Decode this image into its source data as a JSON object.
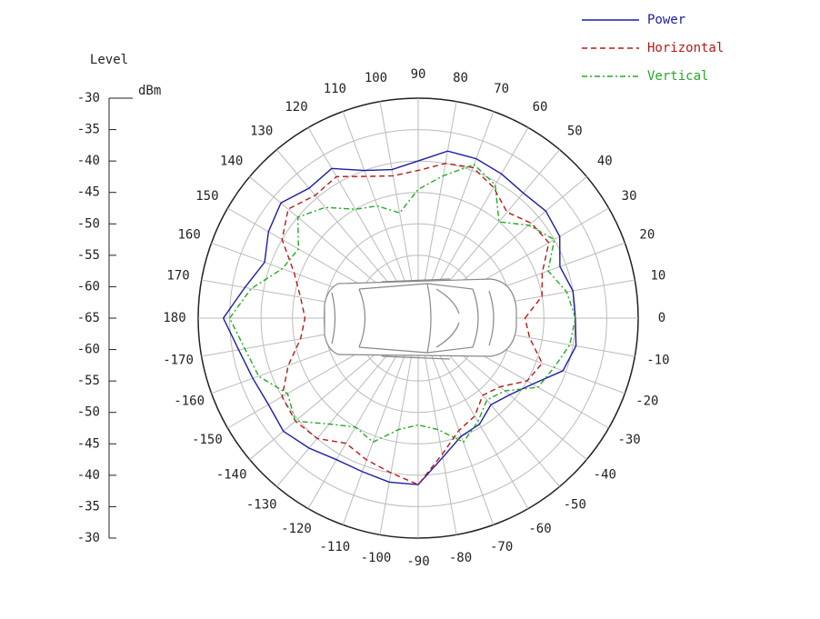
{
  "chart_data": {
    "type": "polar",
    "axis_label": "Level",
    "unit": "dBm",
    "rlim": [
      -65,
      -30
    ],
    "rticks": [
      -65,
      -60,
      -55,
      -50,
      -45,
      -40,
      -35,
      -30
    ],
    "thetaticks": [
      0,
      10,
      20,
      30,
      40,
      50,
      60,
      70,
      80,
      90,
      100,
      110,
      120,
      130,
      140,
      150,
      160,
      170,
      180,
      -170,
      -160,
      -150,
      -140,
      -130,
      -120,
      -110,
      -100,
      -90,
      -80,
      -70,
      -60,
      -50,
      -40,
      -30,
      -20,
      -10
    ],
    "theta": [
      0,
      10,
      20,
      30,
      40,
      50,
      60,
      70,
      80,
      90,
      100,
      110,
      120,
      130,
      140,
      150,
      160,
      170,
      180,
      -170,
      -160,
      -150,
      -140,
      -130,
      -120,
      -110,
      -100,
      -90,
      -80,
      -70,
      -60,
      -50,
      -40,
      -30,
      -20,
      -10
    ],
    "series": [
      {
        "name": "Power",
        "color": "#1c1ca8",
        "dash": "none",
        "values": [
          -40,
          -40,
          -41,
          -39,
          -38.5,
          -39,
          -38.5,
          -38,
          -38,
          -40,
          -41,
          -40,
          -37.5,
          -38,
          -36.5,
          -37.5,
          -39,
          -37,
          -34,
          -36,
          -37,
          -37.5,
          -37,
          -38,
          -39,
          -39,
          -38.5,
          -38.5,
          -42.5,
          -45,
          -45.5,
          -47,
          -46,
          -44,
          -40.5,
          -39.5
        ]
      },
      {
        "name": "Horizontal",
        "color": "#b81818",
        "dash": "6 4",
        "values": [
          -48,
          -45,
          -44,
          -41,
          -41.5,
          -43,
          -41,
          -39.5,
          -40,
          -41.5,
          -42,
          -41,
          -39,
          -39.5,
          -38,
          -40,
          -44,
          -46,
          -47,
          -46,
          -43,
          -40,
          -39.5,
          -40,
          -42,
          -41,
          -40,
          -38.5,
          -43,
          -46,
          -47,
          -49,
          -48,
          -45,
          -44,
          -47
        ]
      },
      {
        "name": "Vertical",
        "color": "#22aa22",
        "dash": "6 3 2 3",
        "values": [
          -40,
          -41,
          -43,
          -40,
          -42,
          -45,
          -40.5,
          -39,
          -42,
          -44.5,
          -48,
          -46,
          -45,
          -42,
          -40,
          -43,
          -42,
          -38,
          -35,
          -37,
          -38,
          -41,
          -39.5,
          -43,
          -45,
          -44,
          -47,
          -48,
          -47,
          -44,
          -46,
          -48,
          -47,
          -43,
          -42,
          -40.5
        ]
      }
    ],
    "grid": true
  }
}
